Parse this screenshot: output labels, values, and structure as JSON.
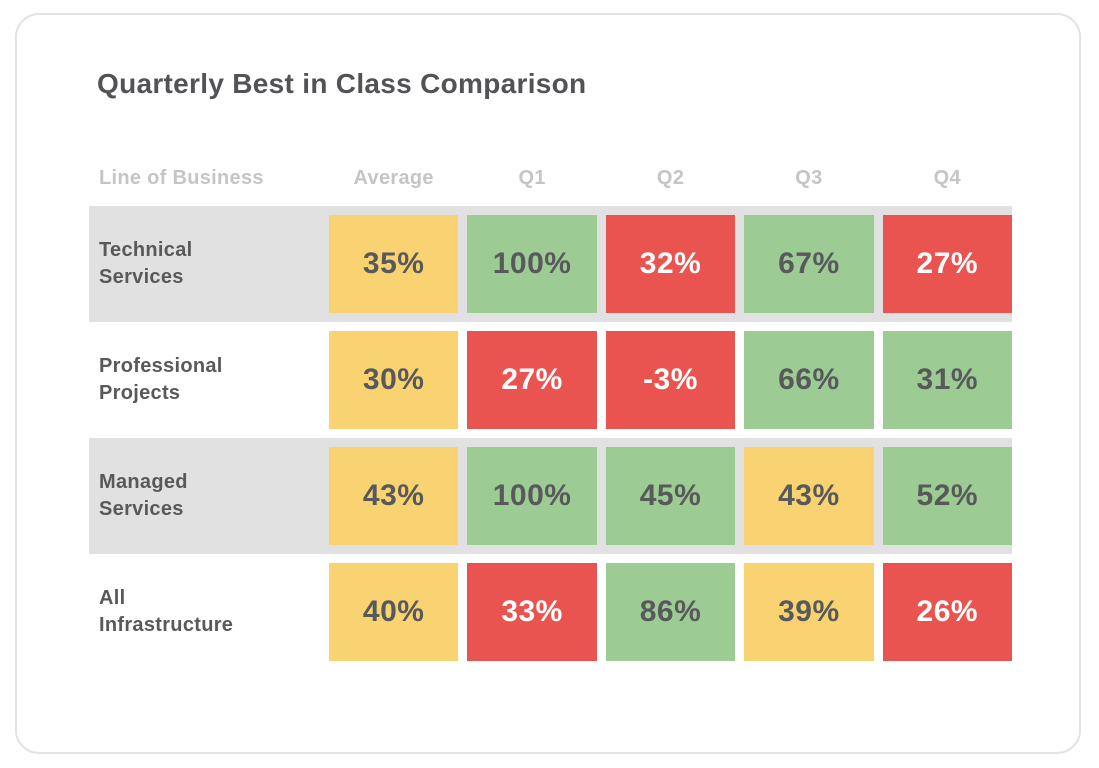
{
  "colors": {
    "good": "#9CCC94",
    "warn": "#F9D271",
    "bad": "#E95450",
    "row_band": "#E1E1E1",
    "dark_text": "#58595B",
    "header_text": "#C5C5C5",
    "card_border": "#E3E3E3",
    "text_on_bad": "#FFFFFF"
  },
  "chart_data": {
    "type": "table",
    "title": "Quarterly Best in Class Comparison",
    "columns": [
      "Line of Business",
      "Average",
      "Q1",
      "Q2",
      "Q3",
      "Q4"
    ],
    "rows": [
      {
        "label": "Technical\nServices",
        "values": [
          "35%",
          "100%",
          "32%",
          "67%",
          "27%"
        ],
        "values_numeric": [
          35,
          100,
          32,
          67,
          27
        ],
        "statuses": [
          "warn",
          "good",
          "bad",
          "good",
          "bad"
        ]
      },
      {
        "label": "Professional\nProjects",
        "values": [
          "30%",
          "27%",
          "-3%",
          "66%",
          "31%"
        ],
        "values_numeric": [
          30,
          27,
          -3,
          66,
          31
        ],
        "statuses": [
          "warn",
          "bad",
          "bad",
          "good",
          "good"
        ]
      },
      {
        "label": "Managed\nServices",
        "values": [
          "43%",
          "100%",
          "45%",
          "43%",
          "52%"
        ],
        "values_numeric": [
          43,
          100,
          45,
          43,
          52
        ],
        "statuses": [
          "warn",
          "good",
          "good",
          "warn",
          "good"
        ]
      },
      {
        "label": "All\nInfrastructure",
        "values": [
          "40%",
          "33%",
          "86%",
          "39%",
          "26%"
        ],
        "values_numeric": [
          40,
          33,
          86,
          39,
          26
        ],
        "statuses": [
          "warn",
          "bad",
          "good",
          "warn",
          "bad"
        ]
      }
    ],
    "legend_semantics": {
      "good": "green cell",
      "warn": "yellow cell",
      "bad": "red cell"
    }
  }
}
